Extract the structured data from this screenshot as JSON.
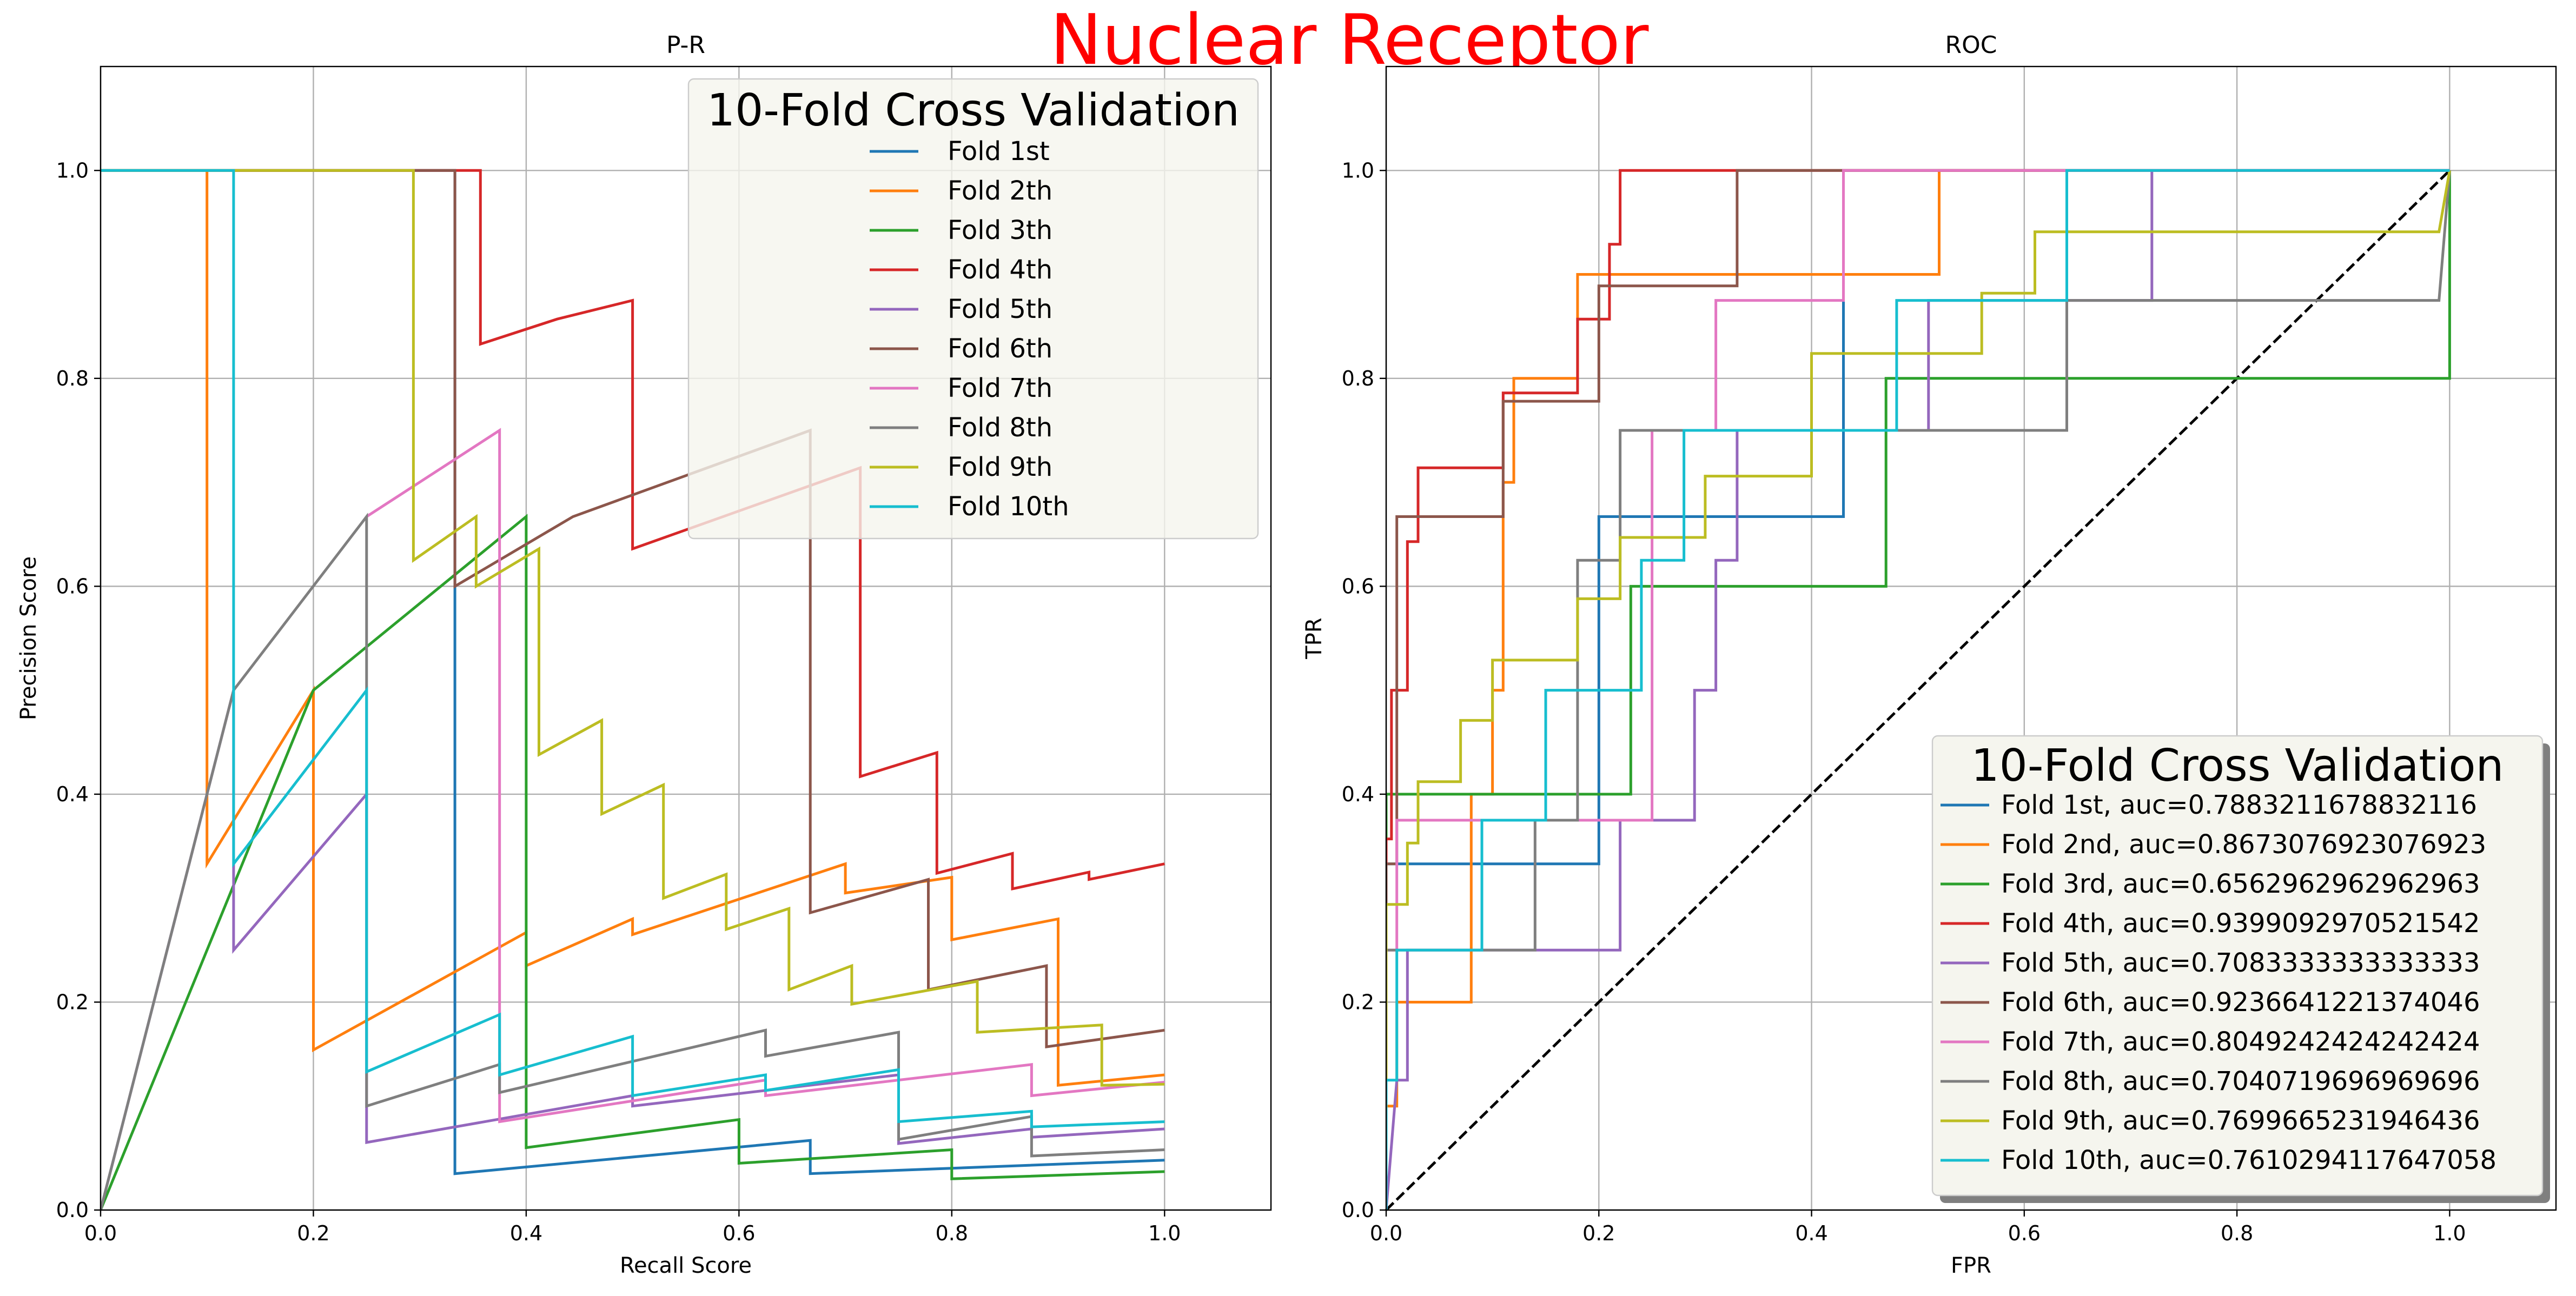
{
  "figure": {
    "suptitle": "Nuclear Receptor",
    "suptitle_color": "#ff0000",
    "series_colors": [
      "#1f77b4",
      "#ff7f0e",
      "#2ca02c",
      "#d62728",
      "#9467bd",
      "#8c564b",
      "#e377c2",
      "#7f7f7f",
      "#bcbd22",
      "#17becf"
    ]
  },
  "chart_data": [
    {
      "type": "line",
      "title": "P-R",
      "xlabel": "Recall Score",
      "ylabel": "Precision Score",
      "xlim": [
        0,
        1.1
      ],
      "ylim": [
        0,
        1.1
      ],
      "xticks": [
        "0.0",
        "0.2",
        "0.4",
        "0.6",
        "0.8",
        "1.0"
      ],
      "yticks": [
        "0.0",
        "0.2",
        "0.4",
        "0.6",
        "0.8",
        "1.0"
      ],
      "grid": true,
      "legend": {
        "title": "10-Fold Cross Validation",
        "location": "upper right",
        "shadow": false,
        "entries": [
          "Fold 1st",
          "Fold 2th",
          "Fold 3th",
          "Fold 4th",
          "Fold 5th",
          "Fold 6th",
          "Fold 7th",
          "Fold 8th",
          "Fold 9th",
          "Fold 10th"
        ]
      },
      "series": [
        {
          "name": "Fold 1st",
          "x": [
            0,
            0.333,
            0.333,
            0.333,
            0.667,
            0.667,
            1.0
          ],
          "y": [
            1,
            1,
            0.6,
            0.035,
            0.067,
            0.035,
            0.048
          ]
        },
        {
          "name": "Fold 2th",
          "x": [
            0,
            0.1,
            0.1,
            0.1,
            0.2,
            0.2,
            0.4,
            0.4,
            0.5,
            0.5,
            0.7,
            0.7,
            0.8,
            0.8,
            0.9,
            0.9,
            1.0
          ],
          "y": [
            1,
            1,
            1,
            0.333,
            0.5,
            0.154,
            0.267,
            0.235,
            0.28,
            0.265,
            0.333,
            0.305,
            0.32,
            0.26,
            0.28,
            0.12,
            0.13
          ]
        },
        {
          "name": "Fold 3th",
          "x": [
            0,
            0.2,
            0.4,
            0.4,
            0.4,
            0.6,
            0.6,
            0.8,
            0.8,
            1.0
          ],
          "y": [
            0,
            0.5,
            0.667,
            0.5,
            0.06,
            0.087,
            0.045,
            0.058,
            0.03,
            0.037
          ]
        },
        {
          "name": "Fold 4th",
          "x": [
            0,
            0.357,
            0.357,
            0.429,
            0.5,
            0.5,
            0.714,
            0.714,
            0.786,
            0.786,
            0.857,
            0.857,
            0.929,
            0.929,
            1.0
          ],
          "y": [
            1,
            1,
            0.833,
            0.857,
            0.875,
            0.636,
            0.714,
            0.417,
            0.44,
            0.324,
            0.343,
            0.309,
            0.325,
            0.318,
            0.333
          ]
        },
        {
          "name": "Fold 5th",
          "x": [
            0,
            0.125,
            0.125,
            0.25,
            0.25,
            0.25,
            0.5,
            0.5,
            0.75,
            0.75,
            0.875,
            0.875,
            1.0
          ],
          "y": [
            0,
            0.5,
            0.25,
            0.4,
            0.4,
            0.065,
            0.11,
            0.1,
            0.13,
            0.064,
            0.078,
            0.07,
            0.078
          ]
        },
        {
          "name": "Fold 6th",
          "x": [
            0,
            0.333,
            0.333,
            0.444,
            0.667,
            0.667,
            0.778,
            0.778,
            0.889,
            0.889,
            1.0
          ],
          "y": [
            1,
            1,
            0.6,
            0.667,
            0.75,
            0.286,
            0.318,
            0.212,
            0.235,
            0.157,
            0.173
          ]
        },
        {
          "name": "Fold 7th",
          "x": [
            0.25,
            0.375,
            0.375,
            0.625,
            0.625,
            0.875,
            0.875,
            1.0
          ],
          "y": [
            0.667,
            0.75,
            0.085,
            0.125,
            0.11,
            0.14,
            0.11,
            0.123
          ]
        },
        {
          "name": "Fold 8th",
          "x": [
            0,
            0.125,
            0.25,
            0.25,
            0.25,
            0.375,
            0.375,
            0.625,
            0.625,
            0.75,
            0.75,
            0.875,
            0.875,
            1.0
          ],
          "y": [
            0,
            0.5,
            0.667,
            0.5,
            0.1,
            0.14,
            0.113,
            0.173,
            0.148,
            0.171,
            0.068,
            0.09,
            0.052,
            0.058
          ]
        },
        {
          "name": "Fold 9th",
          "x": [
            0,
            0.294,
            0.294,
            0.353,
            0.353,
            0.412,
            0.412,
            0.471,
            0.471,
            0.529,
            0.529,
            0.588,
            0.588,
            0.647,
            0.647,
            0.706,
            0.706,
            0.824,
            0.824,
            0.941,
            0.941,
            1.0
          ],
          "y": [
            1,
            1,
            0.625,
            0.667,
            0.6,
            0.636,
            0.438,
            0.471,
            0.381,
            0.409,
            0.3,
            0.323,
            0.27,
            0.29,
            0.212,
            0.235,
            0.198,
            0.22,
            0.171,
            0.178,
            0.12,
            0.121
          ]
        },
        {
          "name": "Fold 10th",
          "x": [
            0,
            0.125,
            0.125,
            0.125,
            0.25,
            0.25,
            0.375,
            0.375,
            0.5,
            0.5,
            0.625,
            0.625,
            0.75,
            0.75,
            0.875,
            0.875,
            1.0
          ],
          "y": [
            1,
            1,
            0.333,
            0.333,
            0.5,
            0.133,
            0.188,
            0.13,
            0.167,
            0.11,
            0.13,
            0.115,
            0.135,
            0.085,
            0.095,
            0.08,
            0.085
          ]
        }
      ]
    },
    {
      "type": "line",
      "title": "ROC",
      "xlabel": "FPR",
      "ylabel": "TPR",
      "xlim": [
        0,
        1.1
      ],
      "ylim": [
        0,
        1.1
      ],
      "xticks": [
        "0.0",
        "0.2",
        "0.4",
        "0.6",
        "0.8",
        "1.0"
      ],
      "yticks": [
        "0.0",
        "0.2",
        "0.4",
        "0.6",
        "0.8",
        "1.0"
      ],
      "grid": true,
      "diagonal": {
        "x": [
          0,
          1
        ],
        "y": [
          0,
          1
        ],
        "style": "dashed",
        "color": "#000000"
      },
      "legend": {
        "title": "10-Fold Cross Validation",
        "location": "lower right",
        "shadow": true,
        "entries": [
          "Fold 1st, auc=0.7883211678832116",
          "Fold 2nd, auc=0.8673076923076923",
          "Fold 3rd, auc=0.6562962962962963",
          "Fold 4th, auc=0.9399092970521542",
          "Fold 5th, auc=0.7083333333333333",
          "Fold 6th, auc=0.9236641221374046",
          "Fold 7th, auc=0.8049242424242424",
          "Fold 8th, auc=0.7040719696969696",
          "Fold 9th, auc=0.7699665231946436",
          "Fold 10th, auc=0.7610294117647058"
        ]
      },
      "series": [
        {
          "name": "Fold 1st, auc=0.7883211678832116",
          "x": [
            0,
            0,
            0.2,
            0.2,
            0.43,
            0.43,
            1.0
          ],
          "y": [
            0,
            0.333,
            0.333,
            0.667,
            0.667,
            1.0,
            1.0
          ]
        },
        {
          "name": "Fold 2nd, auc=0.8673076923076923",
          "x": [
            0,
            0,
            0.01,
            0.01,
            0.08,
            0.08,
            0.1,
            0.1,
            0.11,
            0.11,
            0.12,
            0.12,
            0.13,
            0.13,
            0.18,
            0.18,
            0.52,
            0.52,
            1.0
          ],
          "y": [
            0,
            0.1,
            0.1,
            0.2,
            0.2,
            0.4,
            0.4,
            0.5,
            0.5,
            0.7,
            0.7,
            0.8,
            0.8,
            0.8,
            0.8,
            0.9,
            0.9,
            1.0,
            1.0
          ]
        },
        {
          "name": "Fold 3rd, auc=0.6562962962962963",
          "x": [
            0,
            0,
            0.04,
            0.04,
            0.23,
            0.23,
            0.47,
            0.47,
            0.6,
            0.6,
            1.0,
            1.0
          ],
          "y": [
            0,
            0.4,
            0.4,
            0.4,
            0.4,
            0.6,
            0.6,
            0.8,
            0.8,
            0.8,
            0.8,
            1.0
          ]
        },
        {
          "name": "Fold 4th, auc=0.9399092970521542",
          "x": [
            0,
            0,
            0.005,
            0.005,
            0.02,
            0.02,
            0.03,
            0.03,
            0.07,
            0.07,
            0.11,
            0.11,
            0.18,
            0.18,
            0.21,
            0.21,
            0.22,
            0.22,
            1.0
          ],
          "y": [
            0,
            0.357,
            0.357,
            0.5,
            0.5,
            0.643,
            0.643,
            0.714,
            0.714,
            0.714,
            0.714,
            0.786,
            0.786,
            0.857,
            0.857,
            0.929,
            0.929,
            1.0,
            1.0
          ]
        },
        {
          "name": "Fold 5th, auc=0.7083333333333333",
          "x": [
            0,
            0.01,
            0.01,
            0.02,
            0.02,
            0.22,
            0.22,
            0.29,
            0.29,
            0.31,
            0.31,
            0.33,
            0.33,
            0.43,
            0.43,
            0.51,
            0.51,
            0.72,
            0.72,
            1.0
          ],
          "y": [
            0,
            0.125,
            0.125,
            0.125,
            0.25,
            0.25,
            0.375,
            0.375,
            0.5,
            0.5,
            0.625,
            0.625,
            0.75,
            0.75,
            0.75,
            0.75,
            0.875,
            0.875,
            1.0,
            1.0
          ]
        },
        {
          "name": "Fold 6th, auc=0.9236641221374046",
          "x": [
            0,
            0,
            0.01,
            0.01,
            0.11,
            0.11,
            0.19,
            0.19,
            0.2,
            0.2,
            0.33,
            0.33,
            1.0
          ],
          "y": [
            0,
            0.333,
            0.333,
            0.667,
            0.667,
            0.778,
            0.778,
            0.778,
            0.778,
            0.889,
            0.889,
            1.0,
            1.0
          ]
        },
        {
          "name": "Fold 7th, auc=0.8049242424242424",
          "x": [
            0,
            0,
            0.01,
            0.01,
            0.25,
            0.25,
            0.31,
            0.31,
            0.43,
            0.43,
            1.0
          ],
          "y": [
            0,
            0.25,
            0.25,
            0.375,
            0.375,
            0.75,
            0.75,
            0.875,
            0.875,
            1.0,
            1.0
          ]
        },
        {
          "name": "Fold 8th, auc=0.7040719696969696",
          "x": [
            0,
            0,
            0.14,
            0.14,
            0.18,
            0.18,
            0.22,
            0.22,
            0.64,
            0.64,
            0.99,
            0.99,
            1.0
          ],
          "y": [
            0,
            0.25,
            0.25,
            0.375,
            0.375,
            0.625,
            0.625,
            0.75,
            0.75,
            0.875,
            0.875,
            0.875,
            1.0
          ]
        },
        {
          "name": "Fold 9th, auc=0.7699665231946436",
          "x": [
            0,
            0,
            0.02,
            0.02,
            0.03,
            0.03,
            0.07,
            0.07,
            0.1,
            0.1,
            0.12,
            0.12,
            0.18,
            0.18,
            0.22,
            0.22,
            0.3,
            0.3,
            0.4,
            0.4,
            0.48,
            0.48,
            0.56,
            0.56,
            0.61,
            0.61,
            0.65,
            0.65,
            0.99,
            0.99,
            1.0
          ],
          "y": [
            0,
            0.294,
            0.294,
            0.353,
            0.353,
            0.412,
            0.412,
            0.471,
            0.471,
            0.529,
            0.529,
            0.529,
            0.529,
            0.588,
            0.588,
            0.647,
            0.647,
            0.706,
            0.706,
            0.824,
            0.824,
            0.824,
            0.824,
            0.882,
            0.882,
            0.941,
            0.941,
            0.941,
            0.941,
            0.941,
            1.0
          ]
        },
        {
          "name": "Fold 10th, auc=0.7610294117647058",
          "x": [
            0,
            0,
            0.01,
            0.01,
            0.09,
            0.09,
            0.15,
            0.15,
            0.2,
            0.2,
            0.24,
            0.24,
            0.28,
            0.28,
            0.48,
            0.48,
            0.64,
            0.64,
            1.0
          ],
          "y": [
            0,
            0.125,
            0.125,
            0.25,
            0.25,
            0.375,
            0.375,
            0.5,
            0.5,
            0.5,
            0.5,
            0.625,
            0.625,
            0.75,
            0.75,
            0.875,
            0.875,
            1.0,
            1.0
          ]
        }
      ]
    }
  ]
}
